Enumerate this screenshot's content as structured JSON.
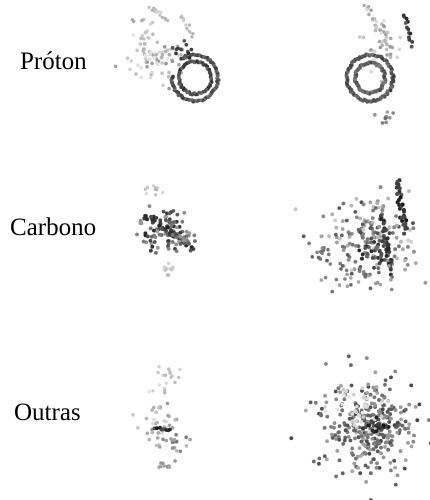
{
  "rows": [
    {
      "label": "Próton"
    },
    {
      "label": "Carbono"
    },
    {
      "label": "Outras"
    }
  ],
  "colors": {
    "background": "#ffffff",
    "text": "#000000",
    "dark_points": "#333333",
    "mid_points": "#777777",
    "light_points": "#cccccc"
  }
}
